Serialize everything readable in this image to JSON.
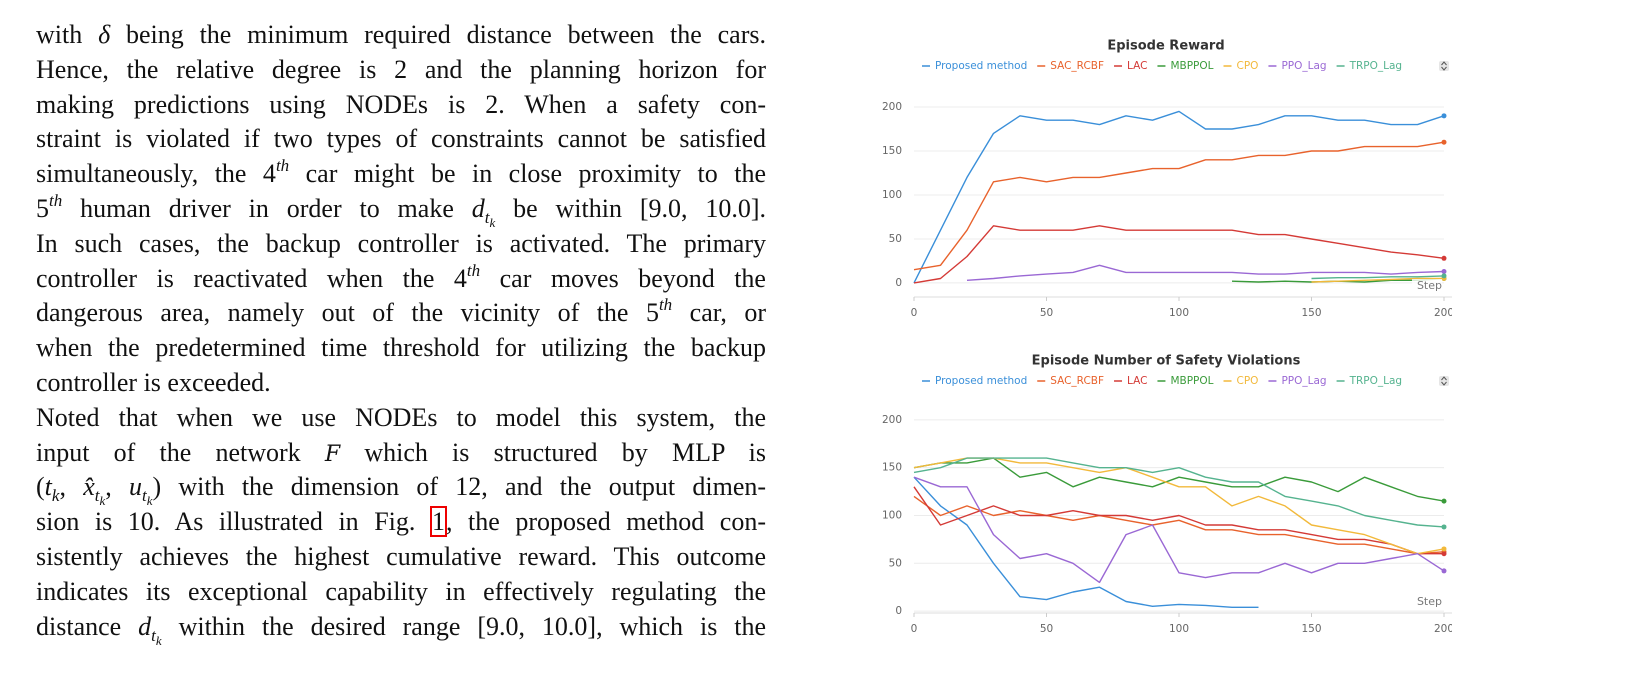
{
  "text": {
    "paragraphs": [
      [
        [
          "with ",
          {
            "t": "δ",
            "s": "i"
          },
          " being the minimum required distance between the cars."
        ],
        [
          "Hence, the relative degree is 2 and the planning horizon for"
        ],
        [
          "making predictions using NODEs is 2. When a safety con-"
        ],
        [
          "straint is violated if two types of constraints cannot be satisfied"
        ],
        [
          "simultaneously, the 4",
          {
            "t": "th",
            "s": "sup"
          },
          " car might be in close proximity to the"
        ],
        [
          "5",
          {
            "t": "th",
            "s": "sup"
          },
          " human driver in order to make ",
          {
            "t": "d",
            "s": "i"
          },
          {
            "t": "t",
            "s": "sub"
          },
          {
            "t": "k",
            "s": "subsub"
          },
          " be within [9.0, 10.0]."
        ],
        [
          "In such cases, the backup controller is activated. The primary"
        ],
        [
          "controller is reactivated when the 4",
          {
            "t": "th",
            "s": "sup"
          },
          " car moves beyond the"
        ],
        [
          "dangerous area, namely out of the vicinity of the 5",
          {
            "t": "th",
            "s": "sup"
          },
          " car, or"
        ],
        [
          "when the predetermined time threshold for utilizing the backup"
        ],
        [
          "controller is exceeded."
        ]
      ],
      [
        [
          "Noted that when we use NODEs to model this system, the"
        ],
        [
          "input of the network ",
          {
            "t": "F",
            "s": "cal"
          },
          " which is structured by MLP is"
        ],
        [
          "(",
          {
            "t": "t",
            "s": "i"
          },
          {
            "t": "k",
            "s": "sub"
          },
          ", ",
          {
            "t": "x̂",
            "s": "i"
          },
          {
            "t": "t",
            "s": "sub"
          },
          {
            "t": "k",
            "s": "subsub"
          },
          ", ",
          {
            "t": "u",
            "s": "i"
          },
          {
            "t": "t",
            "s": "sub"
          },
          {
            "t": "k",
            "s": "subsub"
          },
          ") with the dimension of 12, and the output dimen-"
        ],
        [
          "sion is 10. As illustrated in Fig. ",
          {
            "t": "1",
            "s": "box"
          },
          ", the proposed method con-"
        ],
        [
          "sistently achieves the highest cumulative reward. This outcome"
        ],
        [
          "indicates its exceptional capability in effectively regulating the"
        ],
        [
          "distance ",
          {
            "t": "d",
            "s": "i"
          },
          {
            "t": "t",
            "s": "sub"
          },
          {
            "t": "k",
            "s": "subsub"
          },
          " within the desired range [9.0, 10.0], which is the"
        ]
      ]
    ]
  },
  "chart_data": [
    {
      "type": "line",
      "title": "Episode Reward",
      "xlabel": "Step",
      "x": [
        0,
        10,
        20,
        30,
        40,
        50,
        60,
        70,
        80,
        90,
        100,
        110,
        120,
        130,
        140,
        150,
        160,
        170,
        180,
        190,
        200
      ],
      "xlim": [
        0,
        200
      ],
      "xticks": [
        0,
        50,
        100,
        150,
        200
      ],
      "ylim": [
        -16,
        233
      ],
      "yticks": [
        0,
        50,
        100,
        150,
        200
      ],
      "grid": true,
      "series": [
        {
          "name": "Proposed method",
          "color": "#3a8fd9",
          "values": [
            0,
            60,
            120,
            170,
            190,
            185,
            185,
            180,
            190,
            185,
            195,
            175,
            175,
            180,
            190,
            190,
            185,
            185,
            180,
            180,
            190
          ]
        },
        {
          "name": "SAC_RCBF",
          "color": "#e8622c",
          "values": [
            15,
            20,
            60,
            115,
            120,
            115,
            120,
            120,
            125,
            130,
            130,
            140,
            140,
            145,
            145,
            150,
            150,
            155,
            155,
            155,
            160
          ]
        },
        {
          "name": "LAC",
          "color": "#d43a36",
          "values": [
            0,
            5,
            30,
            65,
            60,
            60,
            60,
            65,
            60,
            60,
            60,
            60,
            60,
            55,
            55,
            50,
            45,
            40,
            35,
            32,
            28
          ]
        },
        {
          "name": "MBPPOL",
          "color": "#3a9b3a",
          "values": [
            null,
            null,
            null,
            null,
            null,
            null,
            null,
            null,
            null,
            null,
            null,
            null,
            2,
            1,
            2,
            1,
            2,
            1,
            3,
            3,
            5
          ]
        },
        {
          "name": "CPO",
          "color": "#f2b93b",
          "values": [
            null,
            null,
            null,
            null,
            null,
            null,
            null,
            null,
            null,
            null,
            null,
            null,
            null,
            null,
            null,
            1,
            2,
            3,
            4,
            5,
            5
          ]
        },
        {
          "name": "PPO_Lag",
          "color": "#9a68d4",
          "values": [
            null,
            null,
            3,
            5,
            8,
            10,
            12,
            20,
            12,
            12,
            12,
            12,
            12,
            10,
            10,
            12,
            12,
            12,
            10,
            12,
            13
          ]
        },
        {
          "name": "TRPO_Lag",
          "color": "#55b38f",
          "values": [
            null,
            null,
            null,
            null,
            null,
            null,
            null,
            null,
            null,
            null,
            null,
            null,
            null,
            null,
            null,
            5,
            6,
            6,
            7,
            7,
            8
          ]
        }
      ]
    },
    {
      "type": "line",
      "title": "Episode Number of Safety Violations",
      "xlabel": "Step",
      "x": [
        0,
        10,
        20,
        30,
        40,
        50,
        60,
        70,
        80,
        90,
        100,
        110,
        120,
        130,
        140,
        150,
        160,
        170,
        180,
        190,
        200
      ],
      "xlim": [
        0,
        200
      ],
      "xticks": [
        0,
        50,
        100,
        150,
        200
      ],
      "ylim": [
        -2,
        226
      ],
      "yticks": [
        0,
        50,
        100,
        150,
        200
      ],
      "grid": true,
      "series": [
        {
          "name": "Proposed method",
          "color": "#3a8fd9",
          "values": [
            140,
            110,
            90,
            50,
            15,
            12,
            20,
            25,
            10,
            5,
            7,
            6,
            4,
            4,
            null,
            null,
            null,
            null,
            null,
            null,
            null
          ]
        },
        {
          "name": "SAC_RCBF",
          "color": "#e8622c",
          "values": [
            120,
            100,
            110,
            100,
            105,
            100,
            95,
            100,
            95,
            90,
            95,
            85,
            85,
            80,
            80,
            75,
            70,
            70,
            65,
            60,
            62
          ]
        },
        {
          "name": "LAC",
          "color": "#d43a36",
          "values": [
            130,
            90,
            100,
            110,
            100,
            100,
            105,
            100,
            100,
            95,
            100,
            90,
            90,
            85,
            85,
            80,
            75,
            75,
            70,
            60,
            60
          ]
        },
        {
          "name": "MBPPOL",
          "color": "#3a9b3a",
          "values": [
            150,
            155,
            155,
            160,
            140,
            145,
            130,
            140,
            135,
            130,
            140,
            135,
            130,
            130,
            140,
            135,
            125,
            140,
            130,
            120,
            115
          ]
        },
        {
          "name": "CPO",
          "color": "#f2b93b",
          "values": [
            150,
            155,
            160,
            160,
            155,
            155,
            150,
            145,
            150,
            140,
            130,
            130,
            110,
            120,
            110,
            90,
            85,
            80,
            70,
            60,
            65
          ]
        },
        {
          "name": "PPO_Lag",
          "color": "#9a68d4",
          "values": [
            140,
            130,
            130,
            80,
            55,
            60,
            50,
            30,
            80,
            90,
            40,
            35,
            40,
            40,
            50,
            40,
            50,
            50,
            55,
            60,
            42
          ]
        },
        {
          "name": "TRPO_Lag",
          "color": "#55b38f",
          "values": [
            145,
            150,
            160,
            160,
            160,
            160,
            155,
            150,
            150,
            145,
            150,
            140,
            135,
            135,
            120,
            115,
            110,
            100,
            95,
            90,
            88
          ]
        }
      ]
    }
  ]
}
